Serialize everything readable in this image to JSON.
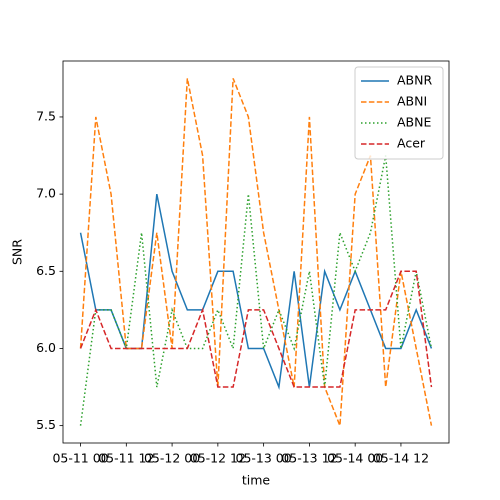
{
  "chart_data": {
    "type": "line",
    "x_label": "time",
    "y_label": "SNR",
    "x": [
      "05-11 00:00",
      "05-11 04:00",
      "05-11 08:00",
      "05-11 12:00",
      "05-11 16:00",
      "05-11 20:00",
      "05-12 00:00",
      "05-12 04:00",
      "05-12 08:00",
      "05-12 12:00",
      "05-12 16:00",
      "05-12 20:00",
      "05-13 00:00",
      "05-13 04:00",
      "05-13 08:00",
      "05-13 12:00",
      "05-13 16:00",
      "05-13 20:00",
      "05-14 00:00",
      "05-14 04:00",
      "05-14 08:00",
      "05-14 12:00",
      "05-14 16:00",
      "05-14 20:00"
    ],
    "series": [
      {
        "name": "ABNR",
        "color": "#1f77b4",
        "style": "solid",
        "values": [
          6.75,
          6.25,
          6.25,
          6.0,
          6.0,
          7.0,
          6.5,
          6.25,
          6.25,
          6.5,
          6.5,
          6.0,
          6.0,
          5.75,
          6.5,
          5.75,
          6.5,
          6.25,
          6.5,
          6.25,
          6.0,
          6.0,
          6.25,
          6.0
        ]
      },
      {
        "name": "ABNI",
        "color": "#ff7f0e",
        "style": "dashed",
        "values": [
          6.0,
          7.5,
          7.0,
          6.0,
          6.0,
          6.75,
          6.0,
          7.75,
          7.25,
          5.75,
          7.75,
          7.5,
          6.75,
          6.25,
          5.75,
          7.5,
          5.75,
          5.5,
          7.0,
          7.25,
          5.75,
          6.5,
          6.0,
          5.5
        ]
      },
      {
        "name": "ABNE",
        "color": "#2ca02c",
        "style": "dotted",
        "values": [
          5.5,
          6.25,
          6.25,
          6.0,
          6.75,
          5.75,
          6.25,
          6.0,
          6.0,
          6.25,
          6.0,
          7.0,
          6.0,
          6.25,
          6.0,
          6.5,
          5.75,
          6.75,
          6.5,
          6.75,
          7.25,
          6.0,
          6.5,
          6.0
        ]
      },
      {
        "name": "Acer",
        "color": "#d62728",
        "style": "dashed",
        "values": [
          6.0,
          6.25,
          6.0,
          6.0,
          6.0,
          6.0,
          6.0,
          6.0,
          6.25,
          5.75,
          5.75,
          6.25,
          6.25,
          6.0,
          5.75,
          5.75,
          5.75,
          5.75,
          6.25,
          6.25,
          6.25,
          6.5,
          6.5,
          5.75
        ]
      }
    ],
    "xlim": [
      "05-10 19:24",
      "05-15 00:36"
    ],
    "xticks": [
      "05-11 00",
      "05-11 12",
      "05-12 00",
      "05-12 12",
      "05-13 00",
      "05-13 12",
      "05-14 00",
      "05-14 12"
    ],
    "ylim": [
      5.3875,
      7.8625
    ],
    "yticks": [
      5.5,
      {
        "value": 6,
        "label": "6.0"
      },
      6.5,
      {
        "value": 7,
        "label": "7.0"
      },
      7.5
    ],
    "legend": "upper right"
  }
}
